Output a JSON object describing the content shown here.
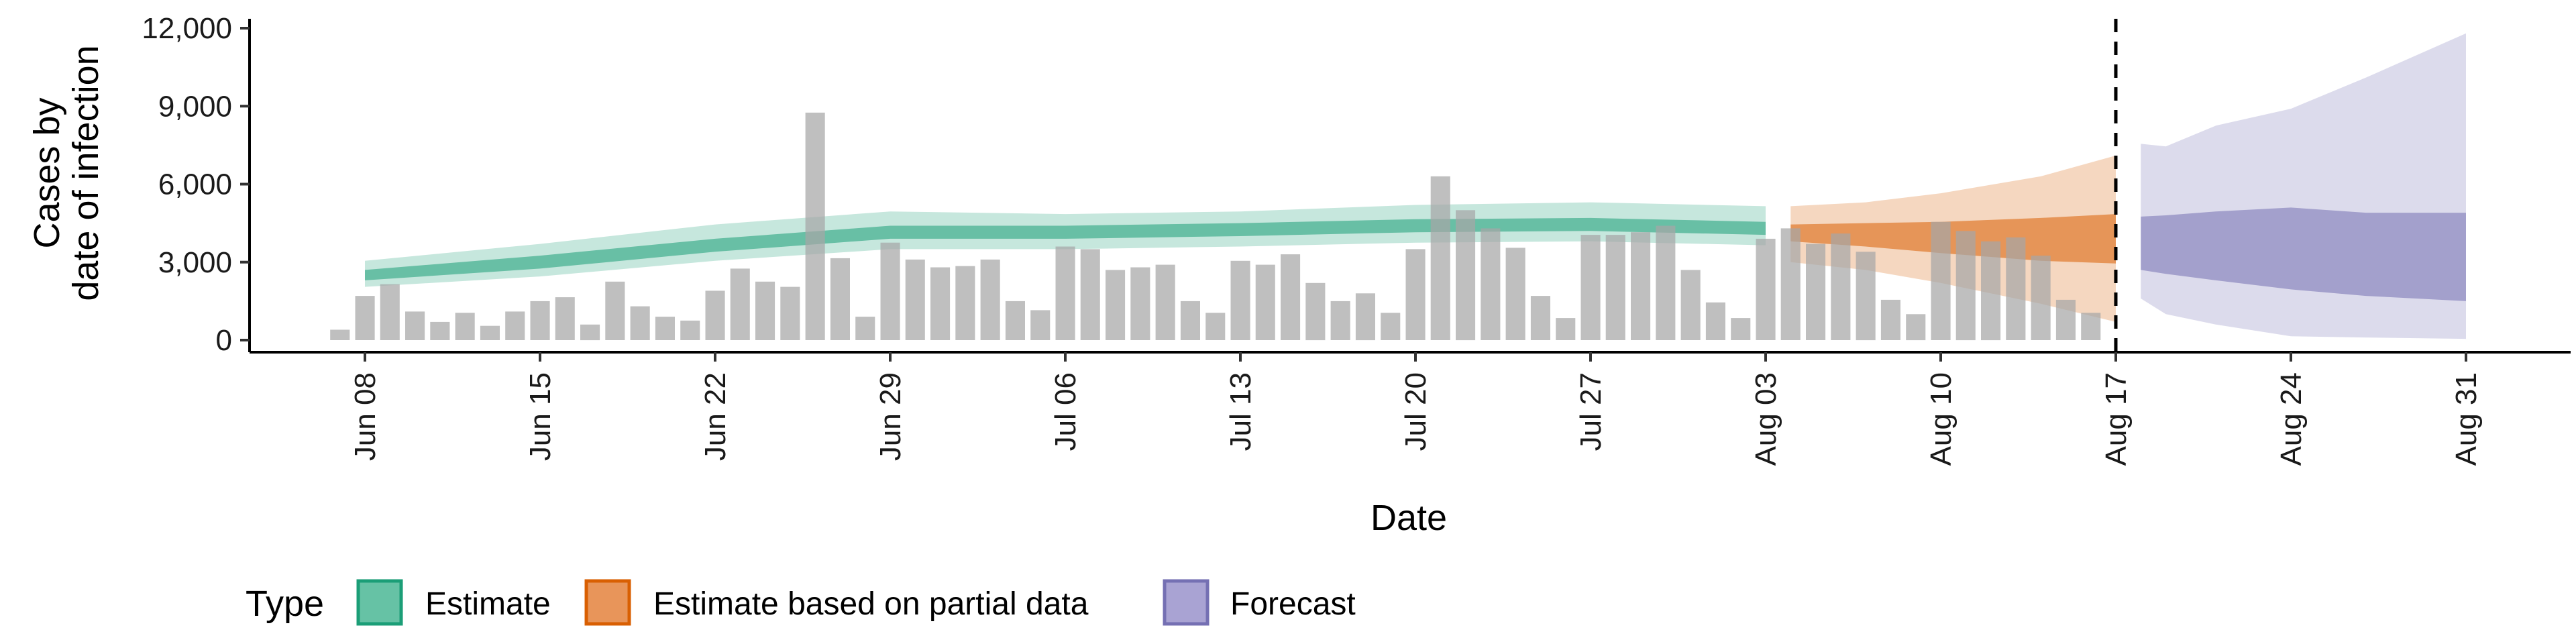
{
  "chart_data": {
    "type": "bar+area",
    "xlabel": "Date",
    "ylabel_line1": "Cases by",
    "ylabel_line2": "date of infection",
    "ylim": [
      0,
      12000
    ],
    "xlim": [
      "2020-06-08",
      "2020-08-31"
    ],
    "y_ticks": [
      0,
      3000,
      6000,
      9000,
      12000
    ],
    "y_tick_labels": [
      "0",
      "3,000",
      "6,000",
      "9,000",
      "12,000"
    ],
    "x_ticks": [
      "2020-06-08",
      "2020-06-15",
      "2020-06-22",
      "2020-06-29",
      "2020-07-06",
      "2020-07-13",
      "2020-07-20",
      "2020-07-27",
      "2020-08-03",
      "2020-08-10",
      "2020-08-17",
      "2020-08-24",
      "2020-08-31"
    ],
    "x_tick_labels": [
      "Jun 08",
      "Jun 15",
      "Jun 22",
      "Jun 29",
      "Jul 06",
      "Jul 13",
      "Jul 20",
      "Jul 27",
      "Aug 03",
      "Aug 10",
      "Aug 17",
      "Aug 24",
      "Aug 31"
    ],
    "grid": false,
    "vline_date": "2020-08-17",
    "bars": {
      "start_date": "2020-06-07",
      "values": [
        400,
        1700,
        2150,
        1100,
        700,
        1050,
        550,
        1100,
        1500,
        1650,
        600,
        2250,
        1300,
        900,
        750,
        1900,
        2750,
        2250,
        2050,
        8750,
        3150,
        900,
        3750,
        3100,
        2800,
        2850,
        3100,
        1500,
        1150,
        3600,
        3500,
        2700,
        2800,
        2900,
        1500,
        1050,
        3050,
        2900,
        3300,
        2200,
        1500,
        1800,
        1050,
        3500,
        6300,
        5000,
        4300,
        3550,
        1700,
        850,
        4050,
        4050,
        4150,
        4400,
        2700,
        1450,
        850,
        3900,
        4300,
        3700,
        4100,
        3400,
        1550,
        1000,
        4550,
        4200,
        3800,
        3950,
        3250,
        1550,
        1050
      ]
    },
    "legend": {
      "title": "Type",
      "position": "bottom-left",
      "entries": [
        {
          "label": "Estimate",
          "fill": "#66c2a5",
          "stroke": "#1b9e77"
        },
        {
          "label": "Estimate based on partial data",
          "fill": "#e8955a",
          "stroke": "#d95f02"
        },
        {
          "label": "Forecast",
          "fill": "#a9a3d3",
          "stroke": "#7570b3"
        }
      ]
    },
    "series": [
      {
        "type": "Estimate",
        "color_outer": "#1b9e77",
        "color_inner": "#1b9e77",
        "x": [
          "2020-06-08",
          "2020-06-15",
          "2020-06-22",
          "2020-06-29",
          "2020-07-06",
          "2020-07-13",
          "2020-07-20",
          "2020-07-27",
          "2020-08-03"
        ],
        "median": [
          2500,
          3000,
          3650,
          4150,
          4150,
          4250,
          4400,
          4450,
          4300
        ],
        "inner_low": [
          2300,
          2750,
          3400,
          3900,
          3900,
          4000,
          4150,
          4200,
          4050
        ],
        "inner_high": [
          2700,
          3250,
          3900,
          4400,
          4400,
          4500,
          4650,
          4700,
          4550
        ],
        "outer_low": [
          2050,
          2450,
          3050,
          3500,
          3500,
          3600,
          3750,
          3800,
          3650
        ],
        "outer_high": [
          3050,
          3700,
          4450,
          4950,
          4850,
          4950,
          5200,
          5300,
          5150
        ]
      },
      {
        "type": "Estimate based on partial data",
        "color_outer": "#d95f02",
        "color_inner": "#d95f02",
        "x": [
          "2020-08-04",
          "2020-08-07",
          "2020-08-10",
          "2020-08-14",
          "2020-08-17"
        ],
        "median": [
          4200,
          4150,
          4000,
          3850,
          3900
        ],
        "inner_low": [
          3800,
          3600,
          3350,
          3050,
          2950
        ],
        "inner_high": [
          4450,
          4500,
          4550,
          4700,
          4850
        ],
        "outer_low": [
          3000,
          2700,
          2200,
          1400,
          700
        ],
        "outer_high": [
          5150,
          5300,
          5650,
          6300,
          7100
        ]
      },
      {
        "type": "Forecast",
        "color_outer": "#7570b3",
        "color_inner": "#7570b3",
        "x": [
          "2020-08-18",
          "2020-08-19",
          "2020-08-21",
          "2020-08-24",
          "2020-08-27",
          "2020-08-31"
        ],
        "median": [
          3800,
          3850,
          3900,
          3900,
          3800,
          3700
        ],
        "inner_low": [
          2700,
          2550,
          2300,
          1950,
          1700,
          1500
        ],
        "inner_high": [
          4750,
          4800,
          4950,
          5100,
          4900,
          4900
        ],
        "outer_low": [
          1600,
          1000,
          600,
          150,
          100,
          50
        ],
        "outer_high": [
          7550,
          7450,
          8250,
          8900,
          10100,
          11800
        ]
      }
    ]
  }
}
